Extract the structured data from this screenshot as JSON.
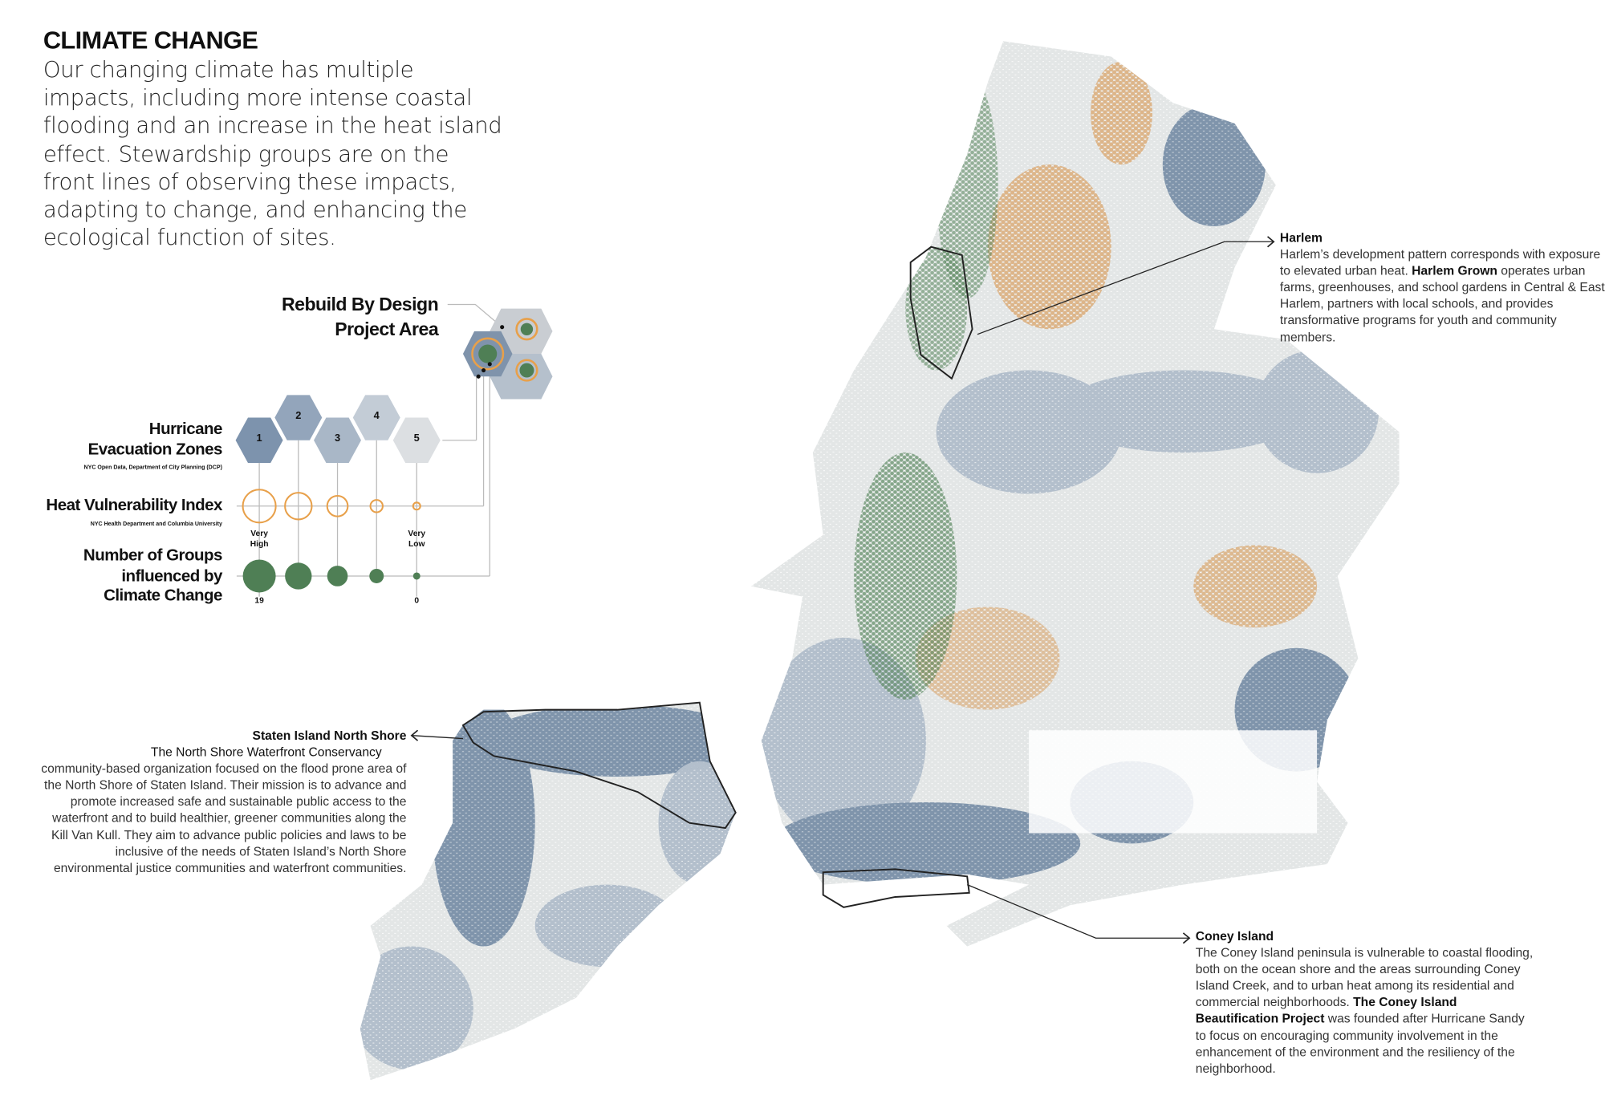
{
  "title": "CLIMATE CHANGE",
  "intro": "Our changing climate has multiple impacts, including more intense coastal flooding and an increase in the heat island effect. Stewardship groups are on the front lines of observing these impacts, adapting to change, and enhancing the ecological function of sites.",
  "legend": {
    "rebuild_line1": "Rebuild By Design",
    "rebuild_line2": "Project Area",
    "hurricane_line1": "Hurricane",
    "hurricane_line2": "Evacuation Zones",
    "hurricane_source": "NYC Open Data, Department of City Planning (DCP)",
    "zones": [
      "1",
      "2",
      "3",
      "4",
      "5"
    ],
    "heat_title": "Heat  Vulnerability Index",
    "heat_source": "NYC Health Department and Columbia University",
    "very_high": "Very High",
    "very_low": "Very Low",
    "groups_line1": "Number of Groups",
    "groups_line2": "influenced by",
    "groups_line3": "Climate Change",
    "groups_max": "19",
    "groups_min": "0"
  },
  "colors": {
    "zone1": "#7d93ad",
    "zone2": "#93a5bb",
    "zone3": "#a9b7c7",
    "zone4": "#c3ccd6",
    "zone5": "#dcdfe2",
    "heat": "#e8a04a",
    "groups": "#4f7f55"
  },
  "callouts": {
    "harlem": {
      "title": "Harlem",
      "text1": "Harlem’s development pattern corresponds with exposure to elevated urban heat. ",
      "org": "Harlem Grown",
      "text2": " operates urban farms, greenhouses, and school gardens in Central & East Harlem, partners with local schools, and provides transformative programs for youth and community members."
    },
    "staten": {
      "title": "Staten Island North Shore",
      "org": "The North Shore Waterfront Conservancy",
      "text": "community-based organization focused on the flood prone area of the North Shore of Staten Island. Their mission is to advance and promote increased safe and sustainable public access to the waterfront and to build healthier, greener communities along the Kill Van Kull. They aim to advance public policies and laws to be inclusive of the needs of Staten Island’s North Shore environmental justice communities and waterfront communities."
    },
    "coney": {
      "title": "Coney Island",
      "text1": "The Coney Island peninsula is vulnerable to coastal flooding, both on the ocean shore and the areas surrounding Coney Island Creek, and to urban heat among its residential and commercial neighborhoods. ",
      "org": "The Coney Island Beautification Project",
      "text2": " was founded after Hurricane Sandy to focus on encouraging community involvement in the enhancement of the environment and the resiliency of the neighborhood."
    }
  }
}
